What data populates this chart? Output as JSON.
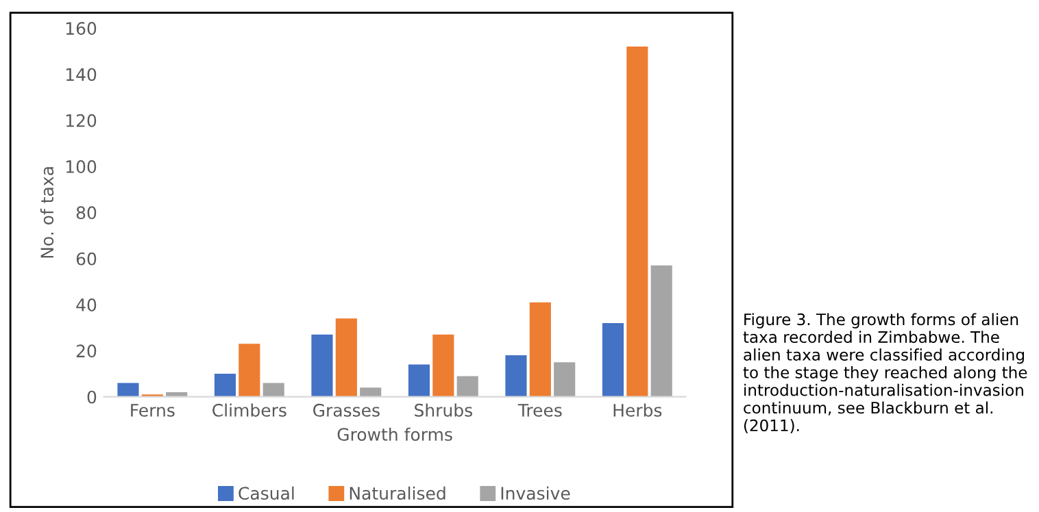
{
  "chart_data": {
    "type": "bar",
    "xlabel": "Growth forms",
    "ylabel": "No. of taxa",
    "categories": [
      "Ferns",
      "Climbers",
      "Grasses",
      "Shrubs",
      "Trees",
      "Herbs"
    ],
    "series": [
      {
        "name": "Casual",
        "color": "#4472c4",
        "values": [
          6,
          10,
          27,
          14,
          18,
          32
        ]
      },
      {
        "name": "Naturalised",
        "color": "#ed7d31",
        "values": [
          1,
          23,
          34,
          27,
          41,
          152
        ]
      },
      {
        "name": "Invasive",
        "color": "#a5a5a5",
        "values": [
          2,
          6,
          4,
          9,
          15,
          57
        ]
      }
    ],
    "ylim": [
      0,
      160
    ],
    "yticks": [
      0,
      20,
      40,
      60,
      80,
      100,
      120,
      140,
      160
    ],
    "grid": false,
    "legend": "bottom",
    "annotations": [
      "Figure 3. The growth forms of alien taxa recorded in Zimbabwe. The alien taxa were classified according to the stage they reached along the introduction-naturalisation-invasion continuum, see Blackburn et al. (2011)."
    ]
  }
}
